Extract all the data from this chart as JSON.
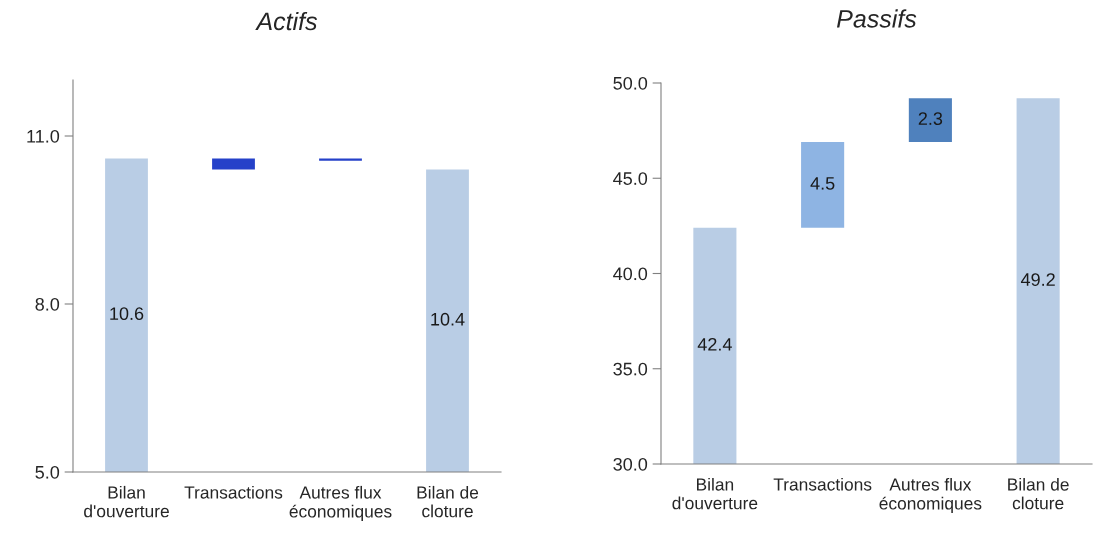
{
  "chart_data": [
    {
      "type": "bar",
      "title": "Actifs",
      "categories": [
        "Bilan\nd'ouverture",
        "Transactions",
        "Autres flux\néconomiques",
        "Bilan de\ncloture"
      ],
      "values": [
        10.6,
        -0.2,
        -0.04,
        10.4
      ],
      "base": [
        null,
        10.6,
        10.6,
        null
      ],
      "colors": [
        "#b9cde5",
        "#2541c9",
        "#2541c9",
        "#b9cde5"
      ],
      "value_labels": [
        "10.6",
        null,
        null,
        "10.4"
      ],
      "ylim": [
        5,
        12
      ],
      "yticks": [
        {
          "value": 5,
          "label": "5.0"
        },
        {
          "value": 8,
          "label": "8.0"
        },
        {
          "value": 11,
          "label": "11.0"
        }
      ]
    },
    {
      "type": "bar",
      "title": "Passifs",
      "categories": [
        "Bilan\nd'ouverture",
        "Transactions",
        "Autres flux\néconomiques",
        "Bilan de\ncloture"
      ],
      "values": [
        42.4,
        4.5,
        2.3,
        49.2
      ],
      "base": [
        null,
        42.4,
        46.9,
        null
      ],
      "colors": [
        "#b9cde5",
        "#8eb4e3",
        "#4f81bd",
        "#b9cde5"
      ],
      "value_labels": [
        "42.4",
        "4.5",
        "2.3",
        "49.2"
      ],
      "ylim": [
        30,
        50
      ],
      "yticks": [
        {
          "value": 30,
          "label": "30.0"
        },
        {
          "value": 35,
          "label": "35.0"
        },
        {
          "value": 40,
          "label": "40.0"
        },
        {
          "value": 45,
          "label": "45.0"
        },
        {
          "value": 50,
          "label": "50.0"
        }
      ]
    }
  ]
}
